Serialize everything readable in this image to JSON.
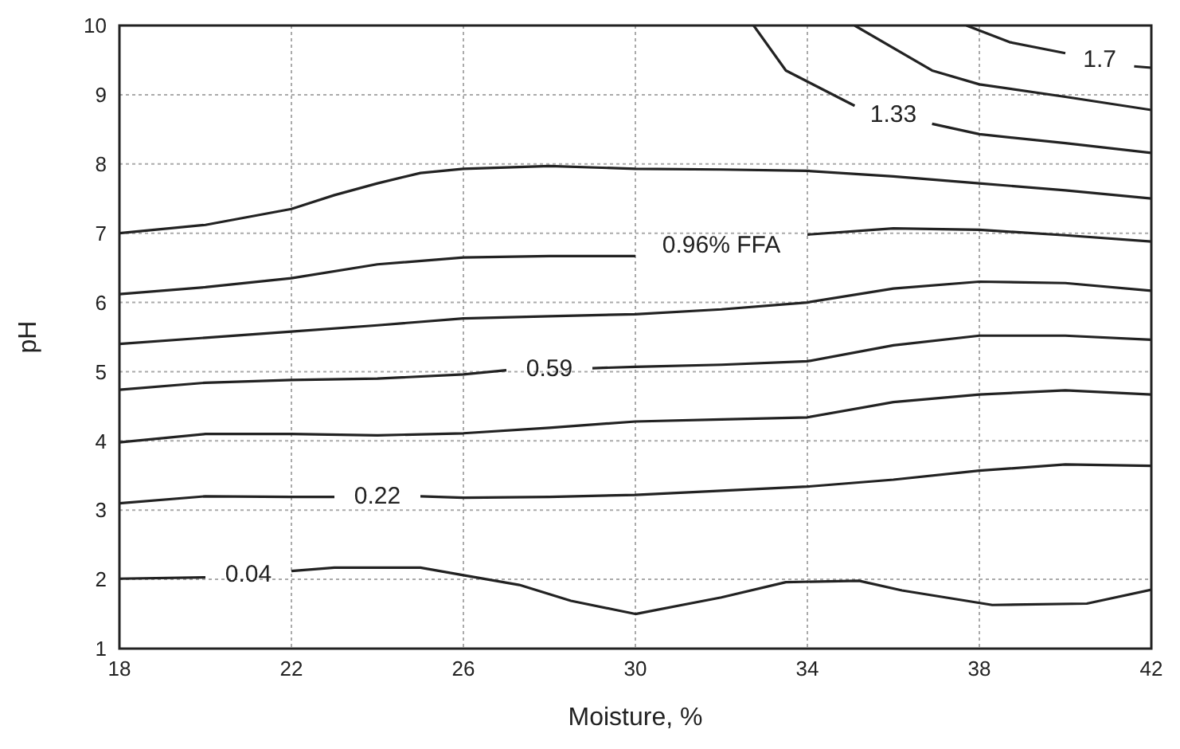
{
  "chart_data": {
    "type": "line",
    "xlabel": "Moisture, %",
    "ylabel": "pH",
    "xlim": [
      18,
      42
    ],
    "ylim": [
      1,
      10
    ],
    "xticks": [
      18,
      22,
      26,
      30,
      34,
      38,
      42
    ],
    "yticks": [
      1,
      2,
      3,
      4,
      5,
      6,
      7,
      8,
      9,
      10
    ],
    "grid": true,
    "line_style": "solid",
    "series": [
      {
        "name": "0.04",
        "color": "#222222",
        "x": [
          18,
          20,
          21,
          22,
          23,
          25,
          26,
          27.3,
          28.5,
          30,
          32,
          33.5,
          35.2,
          36.2,
          38.3,
          40.5,
          42
        ],
        "values": [
          2.01,
          2.03,
          null,
          2.12,
          2.17,
          2.17,
          2.06,
          1.92,
          1.69,
          1.5,
          1.74,
          1.96,
          1.98,
          1.84,
          1.63,
          1.65,
          1.85
        ]
      },
      {
        "name": "0.22",
        "color": "#222222",
        "x": [
          18,
          20,
          22,
          23,
          24,
          25,
          26,
          28,
          30,
          32,
          34,
          36,
          38,
          40,
          42
        ],
        "values": [
          3.1,
          3.2,
          3.19,
          3.19,
          null,
          3.2,
          3.18,
          3.19,
          3.22,
          3.28,
          3.34,
          3.44,
          3.57,
          3.66,
          3.64
        ]
      },
      {
        "color": "#222222",
        "x": [
          18,
          20,
          22,
          24,
          26,
          28,
          30,
          32,
          34,
          36,
          38,
          40,
          42
        ],
        "values": [
          3.98,
          4.1,
          4.1,
          4.08,
          4.11,
          4.19,
          4.28,
          4.31,
          4.34,
          4.56,
          4.67,
          4.73,
          4.67
        ]
      },
      {
        "name": "0.59",
        "color": "#222222",
        "x": [
          18,
          20,
          22,
          24,
          26,
          27,
          28,
          29,
          30,
          32,
          34,
          36,
          38,
          40,
          42
        ],
        "values": [
          4.74,
          4.84,
          4.88,
          4.9,
          4.96,
          5.02,
          null,
          5.05,
          5.07,
          5.1,
          5.15,
          5.38,
          5.52,
          5.52,
          5.46
        ]
      },
      {
        "color": "#222222",
        "x": [
          18,
          20,
          22,
          24,
          26,
          28,
          30,
          32,
          34,
          36,
          38,
          40,
          42
        ],
        "values": [
          5.4,
          5.49,
          5.58,
          5.67,
          5.77,
          5.8,
          5.83,
          5.9,
          6.0,
          6.2,
          6.3,
          6.28,
          6.17
        ]
      },
      {
        "name": "0.96% FFA",
        "color": "#222222",
        "x": [
          18,
          20,
          22,
          24,
          26,
          28,
          30,
          32,
          34,
          36,
          38,
          40,
          42
        ],
        "values": [
          6.12,
          6.22,
          6.35,
          6.55,
          6.65,
          6.67,
          6.67,
          null,
          6.98,
          7.07,
          7.05,
          6.97,
          6.88
        ]
      },
      {
        "color": "#222222",
        "x": [
          18,
          20,
          22,
          23,
          24,
          25,
          26,
          28,
          30,
          32,
          34,
          36,
          38,
          40,
          42
        ],
        "values": [
          7.0,
          7.12,
          7.35,
          7.55,
          7.72,
          7.87,
          7.93,
          7.97,
          7.93,
          7.92,
          7.9,
          7.82,
          7.72,
          7.62,
          7.5
        ]
      },
      {
        "name": "1.33",
        "color": "#222222",
        "x": [
          32.75,
          33.5,
          35.1,
          36,
          36.9,
          38,
          40,
          42
        ],
        "values": [
          10,
          9.35,
          8.84,
          null,
          8.58,
          8.43,
          8.3,
          8.16
        ]
      },
      {
        "color": "#222222",
        "x": [
          35.1,
          36.9,
          38,
          40,
          42
        ],
        "values": [
          10,
          9.35,
          9.15,
          8.97,
          8.78
        ]
      },
      {
        "name": "1.7",
        "color": "#222222",
        "x": [
          37.7,
          38.7,
          40,
          40.8,
          41.6,
          42
        ],
        "values": [
          10,
          9.76,
          9.6,
          null,
          9.41,
          9.39
        ]
      }
    ]
  }
}
